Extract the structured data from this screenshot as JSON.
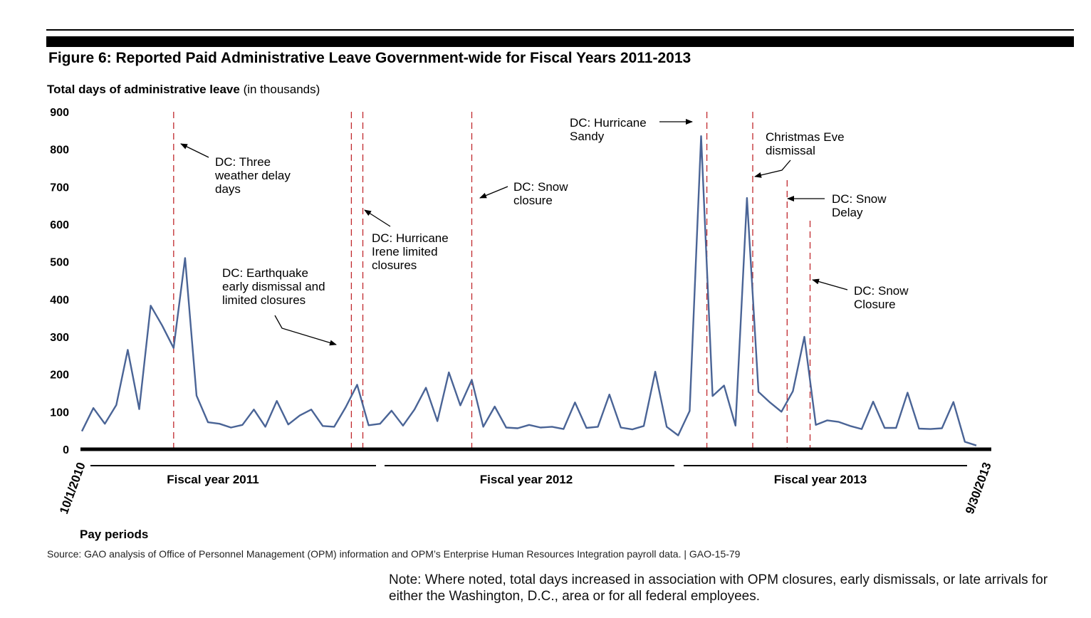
{
  "figure": {
    "title": "Figure 6: Reported Paid Administrative Leave Government-wide for Fiscal Years 2011-2013",
    "source": "Source: GAO analysis of Office of Personnel Management (OPM) information and OPM’s Enterprise Human Resources Integration payroll data. | GAO-15-79",
    "note": "Note: Where noted, total days increased in association with OPM closures, early dismissals, or late arrivals for either the Washington, D.C., area or for all federal employees."
  },
  "chart_data": {
    "type": "line",
    "ylabel_bold": "Total days of administrative leave",
    "ylabel_rest": " (in thousands)",
    "xlabel": "Pay periods",
    "ylim": [
      0,
      900
    ],
    "yticks": [
      "0",
      "100",
      "200",
      "300",
      "400",
      "500",
      "600",
      "700",
      "800",
      "900"
    ],
    "x_start_label": "10/1/2010",
    "x_end_label": "9/30/2013",
    "fiscal_years": [
      "Fiscal year 2011",
      "Fiscal year 2012",
      "Fiscal year 2013"
    ],
    "line_color": "#4a6496",
    "event_line_color": "#c0282d",
    "series": [
      {
        "values": [
          48,
          110,
          68,
          118,
          265,
          107,
          383,
          330,
          270,
          510,
          143,
          72,
          68,
          58,
          65,
          106,
          60,
          129,
          66,
          90,
          106,
          62,
          60,
          112,
          172,
          64,
          68,
          103,
          63,
          106,
          164,
          75,
          205,
          117,
          185,
          60,
          114,
          58,
          56,
          65,
          58,
          60,
          54,
          125,
          57,
          60,
          146,
          58,
          53,
          62,
          207,
          60,
          37,
          102,
          835,
          142,
          170,
          63,
          670,
          153,
          125,
          100,
          155,
          300,
          65,
          77,
          73,
          62,
          54,
          127,
          57,
          57,
          151,
          55,
          54,
          56,
          126,
          20,
          10
        ]
      }
    ],
    "event_periods": [
      8,
      23.5,
      24.5,
      34,
      54.5,
      58.5,
      61.5,
      63.5
    ],
    "annotations": [
      {
        "lines": [
          "DC: Three",
          "weather delay",
          "days"
        ]
      },
      {
        "lines": [
          "DC: Earthquake",
          "early dismissal and",
          "limited closures"
        ]
      },
      {
        "lines": [
          "DC: Hurricane",
          "Irene limited",
          "closures"
        ]
      },
      {
        "lines": [
          "DC: Snow",
          "closure"
        ]
      },
      {
        "lines": [
          "DC: Hurricane",
          "Sandy"
        ]
      },
      {
        "lines": [
          "Christmas Eve",
          "dismissal"
        ]
      },
      {
        "lines": [
          "DC: Snow",
          "Delay"
        ]
      },
      {
        "lines": [
          "DC: Snow",
          "Closure"
        ]
      }
    ]
  }
}
